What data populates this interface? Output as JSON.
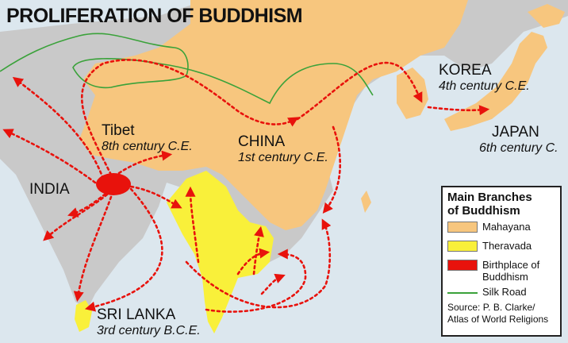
{
  "map": {
    "title": "PROLIFERATION OF BUDDHISM",
    "labels": {
      "tibet": "Tibet",
      "tibet_era": "8th century C.E.",
      "china": "CHINA",
      "china_era": "1st century C.E.",
      "korea": "KOREA",
      "korea_era": "4th century C.E.",
      "japan": "JAPAN",
      "japan_era": "6th century C.",
      "india": "INDIA",
      "sri_lanka": "SRI LANKA",
      "sri_lanka_era": "3rd century B.C.E."
    },
    "colors": {
      "sea": "#dce7ee",
      "land": "#c9c9c9",
      "mahayana": "#f7c67e",
      "theravada": "#f9f03a",
      "birthplace": "#e8120c",
      "silk_road": "#3aa23a",
      "route": "#e8120c"
    }
  },
  "legend": {
    "title_line1": "Main Branches",
    "title_line2": "of Buddhism",
    "items": [
      {
        "label": "Mahayana",
        "color": "#f7c67e"
      },
      {
        "label": "Theravada",
        "color": "#f9f03a"
      },
      {
        "label": "Birthplace of Buddhism",
        "color": "#e8120c"
      },
      {
        "label": "Silk Road",
        "color": "#3aa23a"
      }
    ],
    "source_line1": "Source: P. B. Clarke/",
    "source_line2": "Atlas of World Religions"
  }
}
